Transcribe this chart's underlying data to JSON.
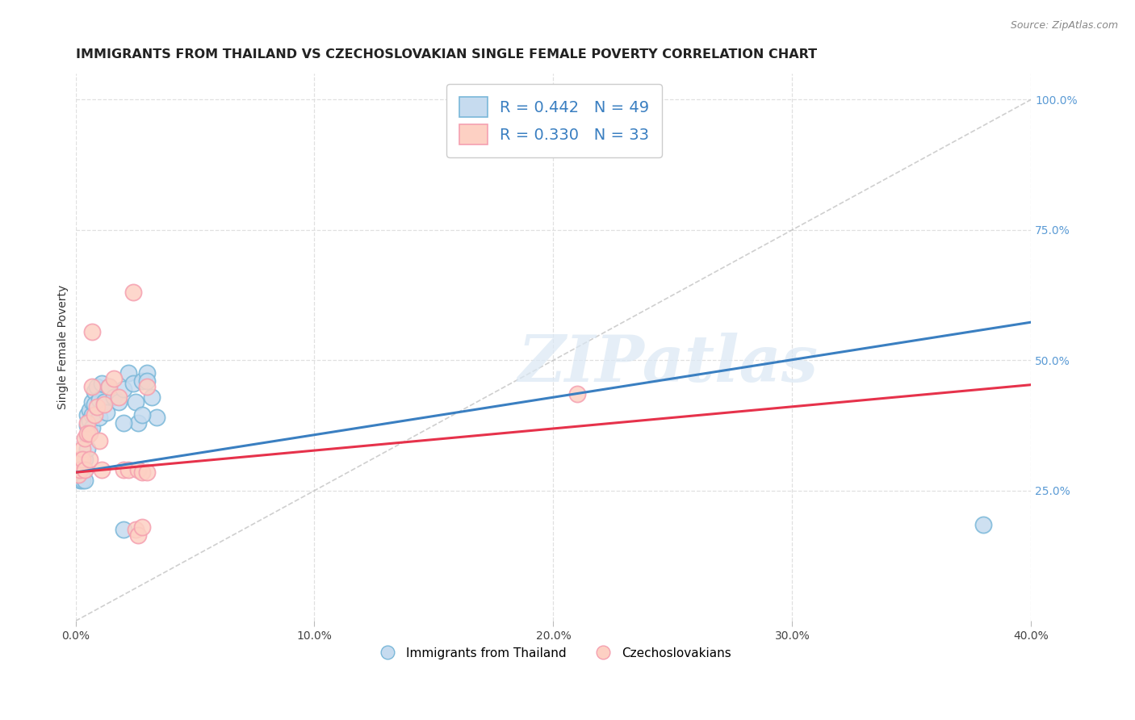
{
  "title": "IMMIGRANTS FROM THAILAND VS CZECHOSLOVAKIAN SINGLE FEMALE POVERTY CORRELATION CHART",
  "source": "Source: ZipAtlas.com",
  "ylabel": "Single Female Poverty",
  "legend_label_blue": "Immigrants from Thailand",
  "legend_label_pink": "Czechoslovakians",
  "blue_edge_color": "#7ab8d9",
  "pink_edge_color": "#f5a0b0",
  "blue_fill": "#c6dbef",
  "pink_fill": "#fdd0c3",
  "trend_blue": "#3a7fc1",
  "trend_pink": "#e6324b",
  "diagonal_color": "#bbbbbb",
  "watermark": "ZIPatlas",
  "blue_scatter_x": [
    0.001,
    0.001,
    0.001,
    0.002,
    0.002,
    0.002,
    0.002,
    0.003,
    0.003,
    0.003,
    0.003,
    0.004,
    0.004,
    0.004,
    0.005,
    0.005,
    0.005,
    0.005,
    0.006,
    0.006,
    0.006,
    0.007,
    0.007,
    0.007,
    0.008,
    0.008,
    0.009,
    0.01,
    0.01,
    0.011,
    0.012,
    0.013,
    0.014,
    0.016,
    0.018,
    0.02,
    0.022,
    0.024,
    0.026,
    0.028,
    0.03,
    0.032,
    0.034,
    0.02,
    0.025,
    0.028,
    0.03,
    0.38,
    0.02
  ],
  "blue_scatter_y": [
    0.295,
    0.285,
    0.275,
    0.305,
    0.29,
    0.28,
    0.27,
    0.3,
    0.29,
    0.28,
    0.27,
    0.31,
    0.29,
    0.27,
    0.395,
    0.375,
    0.355,
    0.33,
    0.405,
    0.385,
    0.365,
    0.42,
    0.395,
    0.37,
    0.44,
    0.415,
    0.45,
    0.425,
    0.39,
    0.455,
    0.42,
    0.4,
    0.45,
    0.43,
    0.42,
    0.445,
    0.475,
    0.455,
    0.38,
    0.46,
    0.475,
    0.43,
    0.39,
    0.38,
    0.42,
    0.395,
    0.46,
    0.185,
    0.175
  ],
  "pink_scatter_x": [
    0.001,
    0.001,
    0.002,
    0.002,
    0.003,
    0.003,
    0.004,
    0.004,
    0.005,
    0.005,
    0.006,
    0.006,
    0.007,
    0.007,
    0.008,
    0.009,
    0.01,
    0.011,
    0.012,
    0.014,
    0.016,
    0.018,
    0.02,
    0.022,
    0.024,
    0.026,
    0.028,
    0.03,
    0.025,
    0.026,
    0.03,
    0.21,
    0.028
  ],
  "pink_scatter_y": [
    0.29,
    0.28,
    0.31,
    0.29,
    0.33,
    0.31,
    0.35,
    0.29,
    0.38,
    0.36,
    0.36,
    0.31,
    0.555,
    0.45,
    0.395,
    0.41,
    0.345,
    0.29,
    0.415,
    0.45,
    0.465,
    0.43,
    0.29,
    0.29,
    0.63,
    0.29,
    0.285,
    0.285,
    0.175,
    0.165,
    0.45,
    0.435,
    0.18
  ],
  "xlim": [
    0.0,
    0.4
  ],
  "ylim": [
    0.0,
    1.05
  ],
  "xticks": [
    0.0,
    0.1,
    0.2,
    0.3,
    0.4
  ],
  "xtick_labels": [
    "0.0%",
    "10.0%",
    "20.0%",
    "30.0%",
    "40.0%"
  ],
  "right_yticks": [
    1.0,
    0.75,
    0.5,
    0.25
  ],
  "right_ytick_labels": [
    "100.0%",
    "75.0%",
    "50.0%",
    "25.0%"
  ],
  "grid_color": "#e0e0e0",
  "bg_color": "#ffffff",
  "title_color": "#222222",
  "right_label_color": "#5b9bd5",
  "title_fontsize": 11.5,
  "axis_label_fontsize": 10,
  "trend_blue_intercept": 0.285,
  "trend_blue_slope": 0.72,
  "trend_pink_intercept": 0.285,
  "trend_pink_slope": 0.42
}
